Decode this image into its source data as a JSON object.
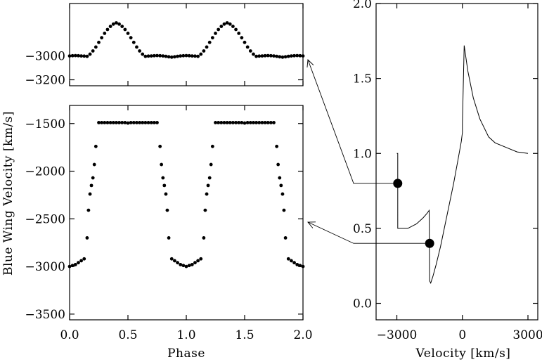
{
  "chart_data": [
    {
      "type": "scatter",
      "panel": "top-left",
      "xlim": [
        0,
        2
      ],
      "ylim": [
        -3250,
        -2560
      ],
      "xticks": [
        0,
        0.5,
        1,
        1.5,
        2
      ],
      "yticks": [
        -3000,
        -3200
      ],
      "ytick_labels": [
        "−3000",
        "−3200"
      ],
      "xlabel": "",
      "ylabel": "",
      "series": [
        {
          "x": [
            0.0,
            0.025,
            0.05,
            0.075,
            0.1,
            0.125,
            0.15,
            0.175,
            0.2,
            0.225,
            0.25,
            0.275,
            0.3,
            0.325,
            0.35,
            0.375,
            0.4,
            0.425,
            0.45,
            0.475,
            0.5,
            0.525,
            0.55,
            0.575,
            0.6,
            0.625,
            0.65,
            0.675,
            0.7,
            0.725,
            0.75,
            0.775,
            0.8,
            0.825,
            0.85,
            0.875,
            0.9,
            0.925,
            0.95,
            0.975,
            1.0,
            1.025,
            1.05,
            1.075,
            1.1,
            1.125,
            1.15,
            1.175,
            1.2,
            1.225,
            1.25,
            1.275,
            1.3,
            1.325,
            1.35,
            1.375,
            1.4,
            1.425,
            1.45,
            1.475,
            1.5,
            1.525,
            1.55,
            1.575,
            1.6,
            1.625,
            1.65,
            1.675,
            1.7,
            1.725,
            1.75,
            1.775,
            1.8,
            1.825,
            1.85,
            1.875,
            1.9,
            1.925,
            1.95,
            1.975,
            2.0
          ],
          "y": [
            -3000,
            -2998,
            -2997,
            -2998,
            -3000,
            -3001,
            -3003,
            -2985,
            -2958,
            -2925,
            -2886,
            -2847,
            -2810,
            -2778,
            -2752,
            -2733,
            -2722,
            -2733,
            -2752,
            -2778,
            -2810,
            -2847,
            -2886,
            -2925,
            -2958,
            -2985,
            -3003,
            -3001,
            -3000,
            -2998,
            -2997,
            -2998,
            -3000,
            -3003,
            -3007,
            -3010,
            -3007,
            -3003,
            -3000,
            -2998,
            -2997,
            -2998,
            -3000,
            -3001,
            -3003,
            -2985,
            -2958,
            -2925,
            -2886,
            -2847,
            -2810,
            -2778,
            -2752,
            -2733,
            -2722,
            -2733,
            -2752,
            -2778,
            -2810,
            -2847,
            -2886,
            -2925,
            -2958,
            -2985,
            -3003,
            -3001,
            -3000,
            -2998,
            -2997,
            -2998,
            -3000,
            -3003,
            -3007,
            -3010,
            -3007,
            -3003,
            -3000,
            -2998,
            -2997,
            -2998,
            -3000
          ]
        }
      ]
    },
    {
      "type": "scatter",
      "panel": "bottom-left",
      "xlim": [
        0,
        2
      ],
      "ylim": [
        -3560,
        -1310
      ],
      "xticks": [
        0,
        0.5,
        1,
        1.5,
        2
      ],
      "xtick_labels": [
        "0.0",
        "0.5",
        "1.0",
        "1.5",
        "2.0"
      ],
      "yticks": [
        -1500,
        -2000,
        -2500,
        -3000,
        -3500
      ],
      "ytick_labels": [
        "−1500",
        "−2000",
        "−2500",
        "−3000",
        "−3500"
      ],
      "xlabel": "Phase",
      "ylabel": "Blue Wing Velocity [km/s]",
      "series": [
        {
          "x": [
            0.0,
            0.025,
            0.05,
            0.075,
            0.1,
            0.125,
            0.15,
            0.162,
            0.175,
            0.187,
            0.2,
            0.212,
            0.225,
            0.25,
            0.275,
            0.3,
            0.325,
            0.35,
            0.375,
            0.4,
            0.425,
            0.45,
            0.475,
            0.5,
            0.525,
            0.55,
            0.575,
            0.6,
            0.625,
            0.65,
            0.675,
            0.7,
            0.725,
            0.75,
            0.775,
            0.787,
            0.8,
            0.812,
            0.825,
            0.837,
            0.85,
            0.875,
            0.9,
            0.925,
            0.95,
            0.975,
            1.0,
            1.025,
            1.05,
            1.075,
            1.1,
            1.125,
            1.15,
            1.162,
            1.175,
            1.187,
            1.2,
            1.212,
            1.225,
            1.25,
            1.275,
            1.3,
            1.325,
            1.35,
            1.375,
            1.4,
            1.425,
            1.45,
            1.475,
            1.5,
            1.525,
            1.55,
            1.575,
            1.6,
            1.625,
            1.65,
            1.675,
            1.7,
            1.725,
            1.75,
            1.775,
            1.787,
            1.8,
            1.812,
            1.825,
            1.837,
            1.85,
            1.875,
            1.9,
            1.925,
            1.95,
            1.975,
            2.0
          ],
          "y": [
            -3000,
            -2990,
            -2980,
            -2960,
            -2940,
            -2920,
            -2700,
            -2410,
            -2240,
            -2150,
            -2070,
            -1930,
            -1740,
            -1490,
            -1490,
            -1490,
            -1490,
            -1490,
            -1490,
            -1490,
            -1490,
            -1490,
            -1490,
            -1495,
            -1490,
            -1490,
            -1490,
            -1490,
            -1490,
            -1490,
            -1490,
            -1490,
            -1490,
            -1490,
            -1740,
            -1930,
            -2070,
            -2150,
            -2240,
            -2410,
            -2700,
            -2920,
            -2940,
            -2960,
            -2980,
            -2990,
            -3000,
            -2990,
            -2980,
            -2960,
            -2940,
            -2920,
            -2700,
            -2410,
            -2240,
            -2150,
            -2070,
            -1930,
            -1740,
            -1490,
            -1490,
            -1490,
            -1490,
            -1490,
            -1490,
            -1490,
            -1490,
            -1490,
            -1490,
            -1495,
            -1490,
            -1490,
            -1490,
            -1490,
            -1490,
            -1490,
            -1490,
            -1490,
            -1490,
            -1490,
            -1740,
            -1930,
            -2070,
            -2150,
            -2240,
            -2410,
            -2700,
            -2920,
            -2940,
            -2960,
            -2980,
            -2990,
            -3000
          ]
        }
      ]
    },
    {
      "type": "line",
      "panel": "right",
      "xlim": [
        -3950,
        3450
      ],
      "ylim": [
        -0.11,
        2.0
      ],
      "xticks": [
        -3000,
        0,
        3000
      ],
      "xtick_labels": [
        "−3000",
        "0",
        "3000"
      ],
      "yticks": [
        0.0,
        0.5,
        1.0,
        1.5,
        2.0
      ],
      "ytick_labels": [
        "0.0",
        "0.5",
        "1.0",
        "1.5",
        "2.0"
      ],
      "xlabel": "Velocity [km/s]",
      "ylabel": "",
      "series": [
        {
          "x": [
            -3000,
            -3000,
            -2960,
            -2960,
            -2500,
            -2100,
            -1800,
            -1620,
            -1520,
            -1500,
            -1450,
            -1350,
            -1200,
            -1000,
            -800,
            -600,
            -400,
            -200,
            -50,
            0,
            0,
            80,
            250,
            500,
            800,
            1200,
            1500,
            2000,
            2500,
            3000
          ],
          "y": [
            1.0,
            1.0,
            1.0,
            0.5,
            0.5,
            0.53,
            0.57,
            0.6,
            0.62,
            0.15,
            0.135,
            0.18,
            0.26,
            0.38,
            0.52,
            0.66,
            0.8,
            0.96,
            1.08,
            1.14,
            1.2,
            1.72,
            1.55,
            1.37,
            1.23,
            1.11,
            1.07,
            1.04,
            1.01,
            1.0
          ]
        }
      ],
      "markers": [
        {
          "x": -2960,
          "y": 0.8
        },
        {
          "x": -1500,
          "y": 0.4
        }
      ]
    }
  ],
  "arrows": [
    {
      "from": "right-panel-upper-marker",
      "to": "top-left-panel"
    },
    {
      "from": "right-panel-lower-marker",
      "to": "bottom-left-panel"
    }
  ]
}
